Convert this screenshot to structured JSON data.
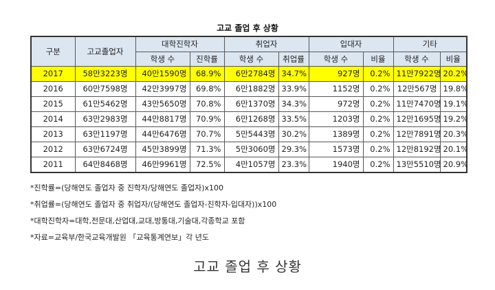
{
  "title": "고교 졸업 후 상황",
  "headers": {
    "gubun": "구분",
    "graduates": "고교졸업자",
    "college": "대학진학자",
    "employed": "취업자",
    "military": "입대자",
    "other": "기타",
    "students": "학생 수",
    "college_rate": "진학률",
    "employ_rate": "취업률",
    "ratio": "비율"
  },
  "rows": [
    {
      "year": "2017",
      "grad": "58만3223명",
      "col_n": "40만1590명",
      "col_r": "68.9%",
      "emp_n": "6만2784명",
      "emp_r": "34.7%",
      "mil_n": "927명",
      "mil_r": "0.2%",
      "oth_n": "11만7922명",
      "oth_r": "20.2%"
    },
    {
      "year": "2016",
      "grad": "60만7598명",
      "col_n": "42만3997명",
      "col_r": "69.8%",
      "emp_n": "6만1882명",
      "emp_r": "33.9%",
      "mil_n": "1152명",
      "mil_r": "0.2%",
      "oth_n": "12만567명",
      "oth_r": "19.8%"
    },
    {
      "year": "2015",
      "grad": "61만5462명",
      "col_n": "43만5650명",
      "col_r": "70.8%",
      "emp_n": "6만1370명",
      "emp_r": "34.3%",
      "mil_n": "972명",
      "mil_r": "0.2%",
      "oth_n": "11만7470명",
      "oth_r": "19.1%"
    },
    {
      "year": "2014",
      "grad": "63만2983명",
      "col_n": "44만8817명",
      "col_r": "70.9%",
      "emp_n": "6만1268명",
      "emp_r": "33.5%",
      "mil_n": "1203명",
      "mil_r": "0.2%",
      "oth_n": "12만1695명",
      "oth_r": "19.2%"
    },
    {
      "year": "2013",
      "grad": "63만1197명",
      "col_n": "44만6476명",
      "col_r": "70.7%",
      "emp_n": "5만5443명",
      "emp_r": "30.2%",
      "mil_n": "1389명",
      "mil_r": "0.2%",
      "oth_n": "12만7891명",
      "oth_r": "20.3%"
    },
    {
      "year": "2012",
      "grad": "63만6724명",
      "col_n": "45만3899명",
      "col_r": "71.3%",
      "emp_n": "5만3060명",
      "emp_r": "29.3%",
      "mil_n": "1573명",
      "mil_r": "0.2%",
      "oth_n": "12만8192명",
      "oth_r": "20.1%"
    },
    {
      "year": "2011",
      "grad": "64만8468명",
      "col_n": "46만9961명",
      "col_r": "72.5%",
      "emp_n": "4만1057명",
      "emp_r": "23.3%",
      "mil_n": "1940명",
      "mil_r": "0.2%",
      "oth_n": "13만5510명",
      "oth_r": "20.9%"
    }
  ],
  "highlight_color": "#ffff00",
  "header_bg": "#dce6f1",
  "notes": [
    "*진학률=(당해연도 졸업자 중 진학자/당해연도 졸업자)x100",
    "*취업률=(당해연도 졸업자 중 취업자/(당해연도 졸업자-진학자-입대자))x100",
    "*대학진학자=대학,전문대,산업대,교대,방통대,기술대,각종학교 포함",
    "*자료=교육부/한국교육개발원 「교육통계연보」각 년도"
  ],
  "caption": "고교 졸업 후 상황"
}
